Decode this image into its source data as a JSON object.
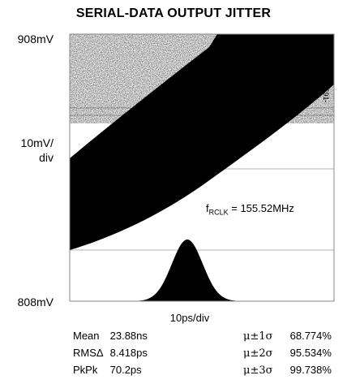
{
  "chart_data": {
    "type": "eye_diagram_with_histogram",
    "title": "SERIAL-DATA OUTPUT JITTER",
    "y_top_label": "908mV",
    "y_bottom_label": "808mV",
    "y_scale_label": [
      "10mV/",
      "div"
    ],
    "x_scale_label": "10ps/div",
    "figure_id": "MAX3691-06",
    "annotation": {
      "prefix": "f",
      "subscript": "RCLK",
      "suffix": " = 155.52MHz"
    },
    "ylim": [
      808,
      908
    ],
    "y_unit": "mV",
    "histogram": {
      "shape": "gaussian",
      "peak_value": 23.88,
      "unit": "ns"
    },
    "stats_left": [
      {
        "label": "Mean",
        "value": "23.88ns"
      },
      {
        "label": "RMSΔ",
        "value": "8.418ps"
      },
      {
        "label": "PkPk",
        "value": "70.2ps"
      }
    ],
    "stats_right": [
      {
        "label": "μ±1σ",
        "value": "68.774%"
      },
      {
        "label": "μ±2σ",
        "value": "95.534%"
      },
      {
        "label": "μ±3σ",
        "value": "99.738%"
      }
    ]
  }
}
